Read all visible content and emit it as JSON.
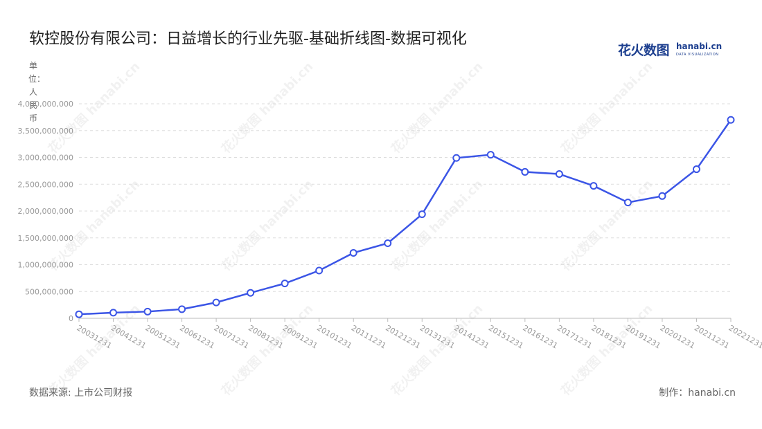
{
  "title": "软控股份有限公司：日益增长的行业先驱-基础折线图-数据可视化",
  "brand": {
    "cn": "花火数图",
    "en": "hanabi.cn",
    "sub": "DATA VISUALIZATION"
  },
  "unit_label": "单位：人民币",
  "footer": {
    "source": "数据来源: 上市公司财报",
    "maker": "制作：hanabi.cn"
  },
  "colors": {
    "line": "#3b55e6",
    "point_fill": "#ffffff",
    "grid": "#dddddd",
    "axis": "#bbbbbb"
  },
  "chart_data": {
    "type": "line",
    "categories": [
      "20031231",
      "20041231",
      "20051231",
      "20061231",
      "20071231",
      "20081231",
      "20091231",
      "20101231",
      "20111231",
      "20121231",
      "20131231",
      "20141231",
      "20151231",
      "20161231",
      "20171231",
      "20181231",
      "20191231",
      "20201231",
      "20211231",
      "20221231"
    ],
    "series": [
      {
        "values": [
          75000000,
          105000000,
          125000000,
          170000000,
          295000000,
          475000000,
          650000000,
          890000000,
          1220000000,
          1400000000,
          1940000000,
          2990000000,
          3050000000,
          2730000000,
          2690000000,
          2470000000,
          2160000000,
          2280000000,
          2780000000,
          3700000000
        ]
      }
    ],
    "ylim": [
      0,
      4000000000
    ],
    "yticks": [
      0,
      500000000,
      1000000000,
      1500000000,
      2000000000,
      2500000000,
      3000000000,
      3500000000,
      4000000000
    ],
    "ytick_labels": [
      "0",
      "500,000,000",
      "1,000,000,000",
      "1,500,000,000",
      "2,000,000,000",
      "2,500,000,000",
      "3,000,000,000",
      "3,500,000,000",
      "4,000,000,000"
    ],
    "grid": true,
    "legend": "none"
  }
}
